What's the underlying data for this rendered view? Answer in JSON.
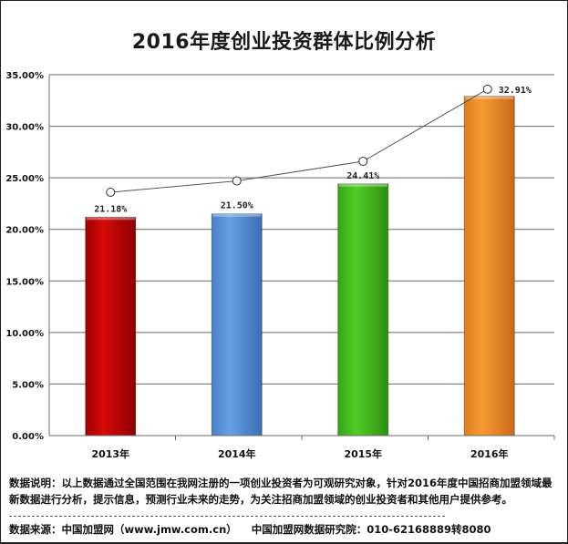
{
  "title": "2016年度创业投资群体比例分析",
  "chart_data": {
    "type": "bar",
    "title": "2016年度创业投资群体比例分析",
    "xlabel": "",
    "ylabel": "",
    "categories": [
      "2013年",
      "2014年",
      "2015年",
      "2016年"
    ],
    "values": [
      21.18,
      21.5,
      24.41,
      32.91
    ],
    "value_labels": [
      "21.18%",
      "21.50%",
      "24.41%",
      "32.91%"
    ],
    "bar_colors": [
      "#cc0a0a",
      "#5a95dc",
      "#48c31f",
      "#f2922a"
    ],
    "overlay_line": {
      "type": "line",
      "marker": "hollow-circle",
      "color": "#555555",
      "approx_values": [
        23.6,
        24.7,
        26.6,
        33.6
      ]
    },
    "ylim": [
      0,
      35
    ],
    "yticks": [
      0,
      5,
      10,
      15,
      20,
      25,
      30,
      35
    ],
    "ytick_labels": [
      "0.00%",
      "5.00%",
      "10.00%",
      "15.00%",
      "20.00%",
      "25.00%",
      "30.00%",
      "35.00%"
    ],
    "grid": true,
    "legend": "none"
  },
  "footer": {
    "note": "数据说明：以上数据通过全国范围在我网注册的一项创业投资者为可观研究对象，针对2016年度中国招商加盟领域最新数据进行分析，提示信息，预测行业未来的走势，为关注招商加盟领域的创业投资者和其他用户提供参考。",
    "source": "数据来源：中国加盟网（www.jmw.com.cn）",
    "institute": "中国加盟网数据研究院：010-62168889转8080"
  }
}
